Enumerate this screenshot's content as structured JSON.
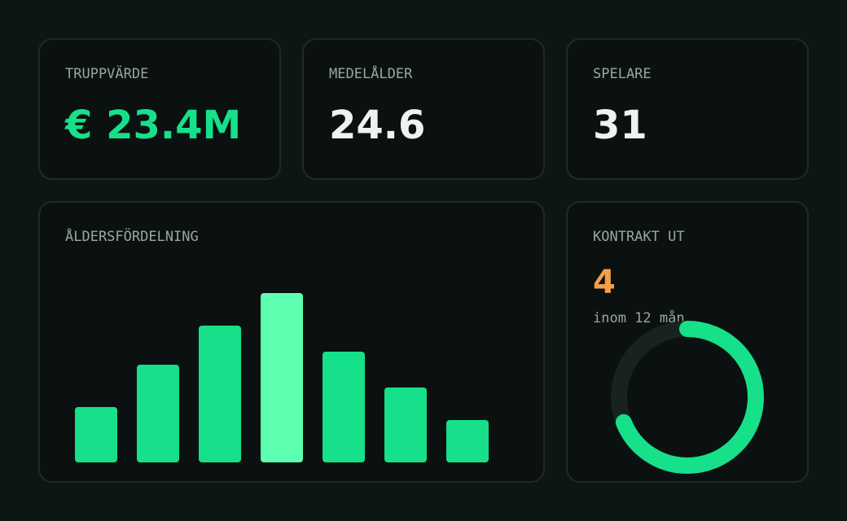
{
  "kpis": [
    {
      "label": "TRUPPVÄRDE",
      "value": "€ 23.4M",
      "color": "#16e08a"
    },
    {
      "label": "MEDELÅLDER",
      "value": "24.6",
      "color": "#eef2f0"
    },
    {
      "label": "SPELARE",
      "value": "31",
      "color": "#eef2f0"
    }
  ],
  "chart_data": {
    "type": "bar",
    "title": "ÅLDERSFÖRDELNING",
    "values": [
      68,
      120,
      168,
      208,
      136,
      92,
      52
    ],
    "colors": [
      "#16e08a",
      "#16e08a",
      "#16e08a",
      "#5cffb0",
      "#16e08a",
      "#16e08a",
      "#16e08a"
    ],
    "ylim": [
      0,
      208
    ]
  },
  "contracts": {
    "label": "KONTRAKT UT",
    "value": "4",
    "value_color": "#f59e4a",
    "note": "inom 12 mån",
    "ring": {
      "value": 69,
      "max": 100,
      "color": "#16e08a",
      "track": "#18221f"
    }
  }
}
